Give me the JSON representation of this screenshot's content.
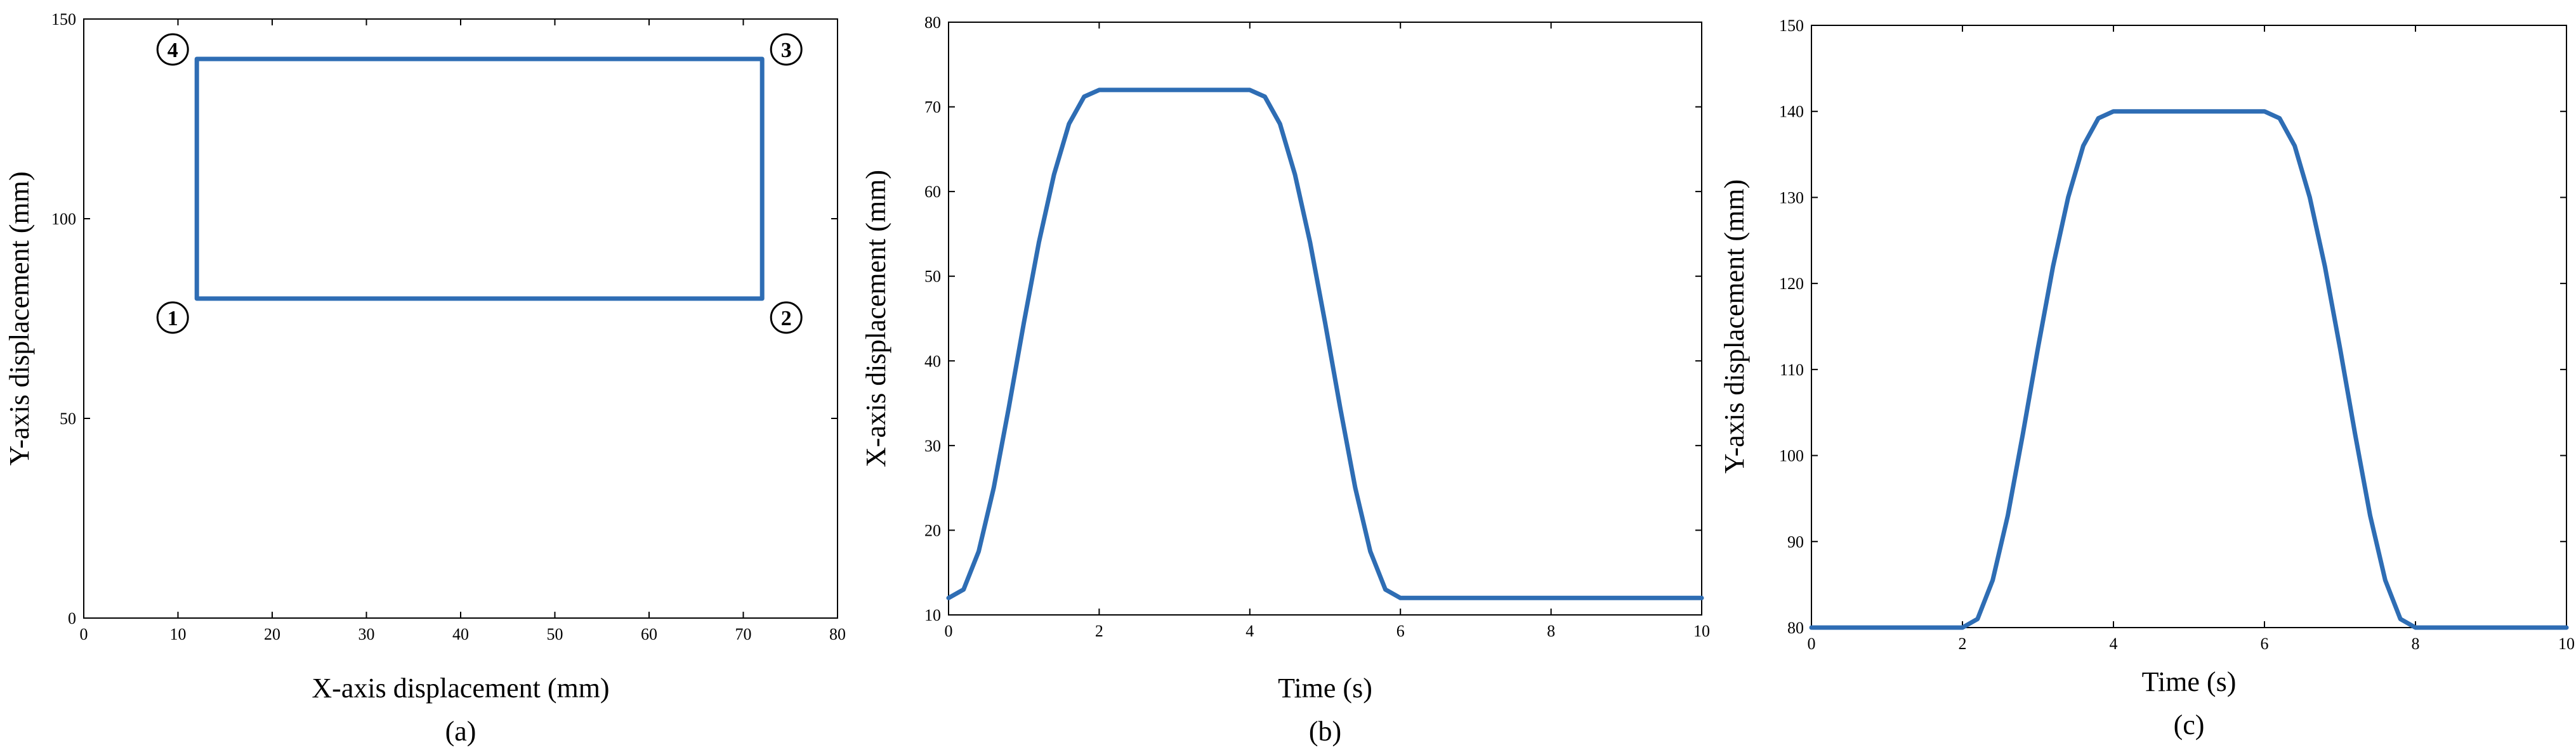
{
  "colors": {
    "series": "#2e6db4"
  },
  "chart_data": [
    {
      "type": "line",
      "caption": "(a)",
      "xlabel": "X-axis displacement (mm)",
      "ylabel": "Y-axis displacement (mm)",
      "xlim": [
        0,
        80
      ],
      "ylim": [
        0,
        150
      ],
      "xticks": [
        0,
        10,
        20,
        30,
        40,
        50,
        60,
        70,
        80
      ],
      "yticks": [
        0,
        50,
        100,
        150
      ],
      "grid": false,
      "series": [
        {
          "x": [
            12,
            72,
            72,
            12,
            12
          ],
          "y": [
            80,
            80,
            140,
            140,
            80
          ]
        }
      ],
      "annotations": [
        {
          "text": "1",
          "x": 12,
          "y": 80
        },
        {
          "text": "2",
          "x": 72,
          "y": 80
        },
        {
          "text": "3",
          "x": 72,
          "y": 140
        },
        {
          "text": "4",
          "x": 12,
          "y": 140
        }
      ]
    },
    {
      "type": "line",
      "caption": "(b)",
      "xlabel": "Time (s)",
      "ylabel": "X-axis displacement (mm)",
      "xlim": [
        0,
        10
      ],
      "ylim": [
        10,
        80
      ],
      "xticks": [
        0,
        2,
        4,
        6,
        8,
        10
      ],
      "yticks": [
        10,
        20,
        30,
        40,
        50,
        60,
        70,
        80
      ],
      "grid": false,
      "series": [
        {
          "x": [
            0,
            0.2,
            0.4,
            0.6,
            0.8,
            1.0,
            1.2,
            1.4,
            1.6,
            1.8,
            2.0,
            2.5,
            3.0,
            3.5,
            4.0,
            4.2,
            4.4,
            4.6,
            4.8,
            5.0,
            5.2,
            5.4,
            5.6,
            5.8,
            6.0,
            7.0,
            8.0,
            9.0,
            10.0
          ],
          "y": [
            12,
            13,
            17.5,
            25,
            34.5,
            44.5,
            54,
            62,
            68,
            71.2,
            72,
            72,
            72,
            72,
            72,
            71.2,
            68,
            62,
            54,
            44.5,
            34.5,
            25,
            17.5,
            13,
            12,
            12,
            12,
            12,
            12
          ]
        }
      ]
    },
    {
      "type": "line",
      "caption": "(c)",
      "xlabel": "Time (s)",
      "ylabel": "Y-axis displacement (mm)",
      "xlim": [
        0,
        10
      ],
      "ylim": [
        80,
        150
      ],
      "xticks": [
        0,
        2,
        4,
        6,
        8,
        10
      ],
      "yticks": [
        80,
        90,
        100,
        110,
        120,
        130,
        140,
        150
      ],
      "grid": false,
      "series": [
        {
          "x": [
            0,
            1,
            2.0,
            2.2,
            2.4,
            2.6,
            2.8,
            3.0,
            3.2,
            3.4,
            3.6,
            3.8,
            4.0,
            4.5,
            5.0,
            5.5,
            6.0,
            6.2,
            6.4,
            6.6,
            6.8,
            7.0,
            7.2,
            7.4,
            7.6,
            7.8,
            8.0,
            9.0,
            10.0
          ],
          "y": [
            80,
            80,
            80,
            81,
            85.5,
            93,
            102.5,
            112.5,
            122,
            130,
            136,
            139.2,
            140,
            140,
            140,
            140,
            140,
            139.2,
            136,
            130,
            122,
            112.5,
            102.5,
            93,
            85.5,
            81,
            80,
            80,
            80
          ]
        }
      ]
    }
  ]
}
